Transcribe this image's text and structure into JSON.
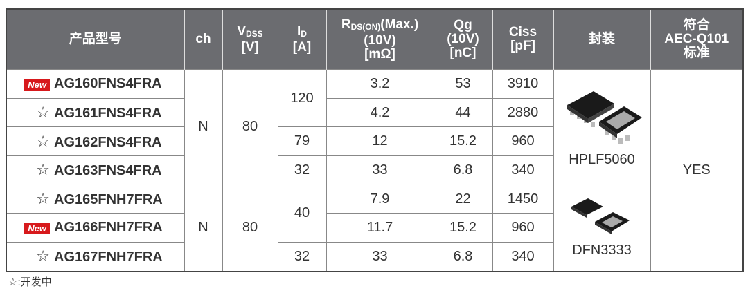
{
  "header": {
    "product": "产品型号",
    "ch": "ch",
    "vdss": {
      "symbol": "V",
      "sub": "DSS",
      "unit": "[V]"
    },
    "id": {
      "symbol": "I",
      "sub": "D",
      "unit": "[A]"
    },
    "rds": {
      "symbol": "R",
      "sub": "DS(ON)",
      "cond": "(Max.)",
      "volt": "(10V)",
      "unit": "[mΩ]"
    },
    "qg": {
      "symbol": "Qg",
      "volt": "(10V)",
      "unit": "[nC]"
    },
    "ciss": {
      "symbol": "Ciss",
      "unit": "[pF]"
    },
    "package": "封装",
    "aec": {
      "line1": "符合",
      "line2": "AEC-Q101",
      "line3": "标准"
    }
  },
  "rows": [
    {
      "mark": "New",
      "part": "AG160FNS4FRA",
      "rds": "3.2",
      "qg": "53",
      "ciss": "3910"
    },
    {
      "mark": "☆",
      "part": "AG161FNS4FRA",
      "rds": "4.2",
      "qg": "44",
      "ciss": "2880"
    },
    {
      "mark": "☆",
      "part": "AG162FNS4FRA",
      "rds": "12",
      "qg": "15.2",
      "ciss": "960"
    },
    {
      "mark": "☆",
      "part": "AG163FNS4FRA",
      "rds": "33",
      "qg": "6.8",
      "ciss": "340"
    },
    {
      "mark": "☆",
      "part": "AG165FNH7FRA",
      "rds": "7.9",
      "qg": "22",
      "ciss": "1450"
    },
    {
      "mark": "New",
      "part": "AG166FNH7FRA",
      "rds": "11.7",
      "qg": "15.2",
      "ciss": "960"
    },
    {
      "mark": "☆",
      "part": "AG167FNH7FRA",
      "rds": "33",
      "qg": "6.8",
      "ciss": "340"
    }
  ],
  "groups": [
    {
      "ch": "N",
      "vdss": "80",
      "id": [
        "120",
        "79",
        "32"
      ]
    },
    {
      "ch": "N",
      "vdss": "80",
      "id": [
        "40",
        "32"
      ]
    }
  ],
  "packages": [
    "HPLF5060",
    "DFN3333"
  ],
  "aec": "YES",
  "footnote": "☆:开发中"
}
